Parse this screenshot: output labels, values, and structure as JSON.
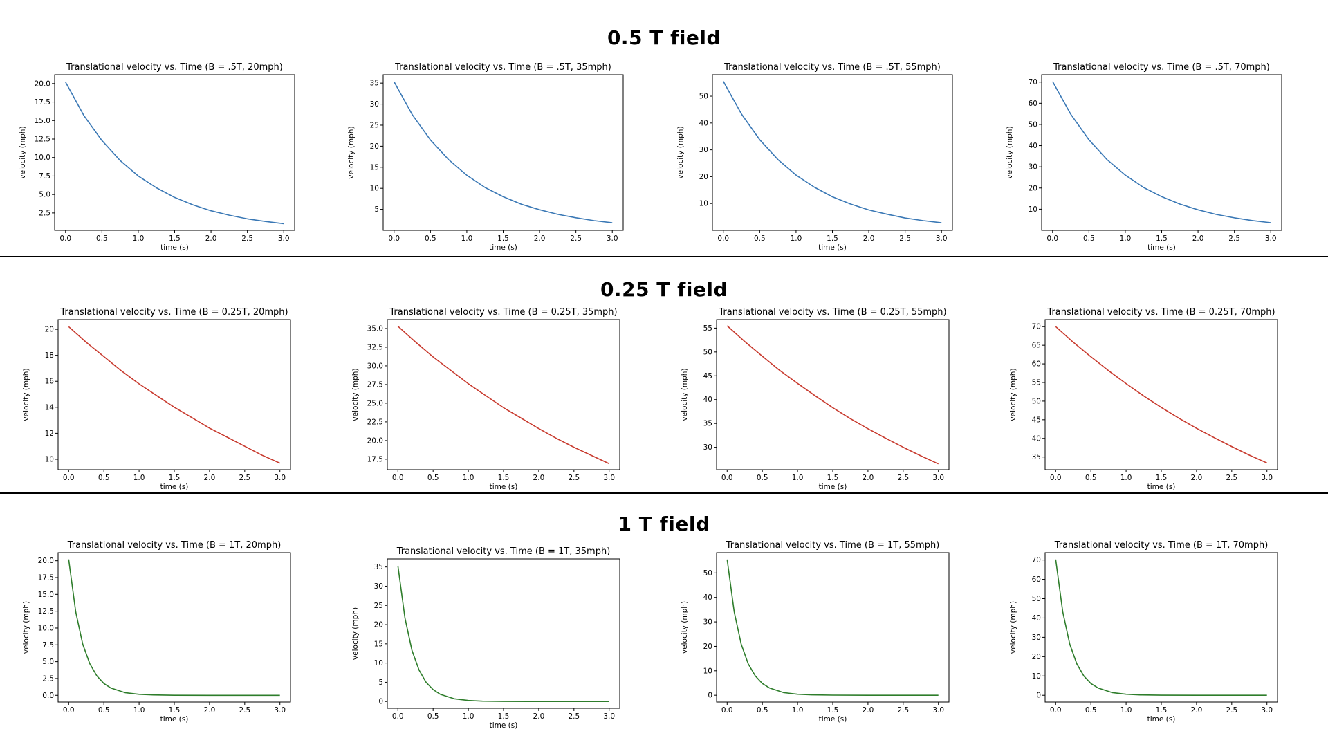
{
  "sections": [
    {
      "title": "0.5 T field",
      "color": "#3a78b5"
    },
    {
      "title": "0.25 T field",
      "color": "#c83a2e"
    },
    {
      "title": "1 T field",
      "color": "#2e7d2b"
    }
  ],
  "chart_data": [
    {
      "type": "line",
      "title": "Translational velocity vs. Time (B = .5T, 20mph)",
      "xlabel": "time (s)",
      "ylabel": "velocity (mph)",
      "series": [
        {
          "x": [
            0,
            0.25,
            0.5,
            0.75,
            1,
            1.25,
            1.5,
            1.75,
            2,
            2.25,
            2.5,
            2.75,
            3
          ],
          "y": [
            20.2,
            15.7,
            12.3,
            9.6,
            7.5,
            5.9,
            4.6,
            3.6,
            2.8,
            2.2,
            1.7,
            1.35,
            1.05
          ]
        }
      ],
      "xlim": [
        -0.15,
        3.15
      ],
      "ylim": [
        0.15,
        21.2
      ],
      "xticks": [
        0,
        0.5,
        1,
        1.5,
        2,
        2.5,
        3
      ],
      "xtick_labels": [
        "0.0",
        "0.5",
        "1.0",
        "1.5",
        "2.0",
        "2.5",
        "3.0"
      ],
      "yticks": [
        2.5,
        5,
        7.5,
        10,
        12.5,
        15,
        17.5,
        20
      ],
      "ytick_labels": [
        "2.5",
        "5.0",
        "7.5",
        "10.0",
        "12.5",
        "15.0",
        "17.5",
        "20.0"
      ],
      "grid": false
    },
    {
      "type": "line",
      "title": "Translational velocity vs. Time (B = .5T, 35mph)",
      "xlabel": "time (s)",
      "ylabel": "velocity (mph)",
      "series": [
        {
          "x": [
            0,
            0.25,
            0.5,
            0.75,
            1,
            1.25,
            1.5,
            1.75,
            2,
            2.25,
            2.5,
            2.75,
            3
          ],
          "y": [
            35.3,
            27.5,
            21.5,
            16.8,
            13.1,
            10.2,
            8.0,
            6.2,
            4.9,
            3.8,
            3.0,
            2.3,
            1.8
          ]
        }
      ],
      "xlim": [
        -0.15,
        3.15
      ],
      "ylim": [
        0.0,
        37.0
      ],
      "xticks": [
        0,
        0.5,
        1,
        1.5,
        2,
        2.5,
        3
      ],
      "xtick_labels": [
        "0.0",
        "0.5",
        "1.0",
        "1.5",
        "2.0",
        "2.5",
        "3.0"
      ],
      "yticks": [
        5,
        10,
        15,
        20,
        25,
        30,
        35
      ],
      "ytick_labels": [
        "5",
        "10",
        "15",
        "20",
        "25",
        "30",
        "35"
      ],
      "grid": false
    },
    {
      "type": "line",
      "title": "Translational velocity vs. Time (B = .5T, 55mph)",
      "xlabel": "time (s)",
      "ylabel": "velocity (mph)",
      "series": [
        {
          "x": [
            0,
            0.25,
            0.5,
            0.75,
            1,
            1.25,
            1.5,
            1.75,
            2,
            2.25,
            2.5,
            2.75,
            3
          ],
          "y": [
            55.5,
            43.3,
            33.8,
            26.4,
            20.6,
            16.1,
            12.5,
            9.8,
            7.6,
            6.0,
            4.6,
            3.6,
            2.8
          ]
        }
      ],
      "xlim": [
        -0.15,
        3.15
      ],
      "ylim": [
        0.0,
        58.0
      ],
      "xticks": [
        0,
        0.5,
        1,
        1.5,
        2,
        2.5,
        3
      ],
      "xtick_labels": [
        "0.0",
        "0.5",
        "1.0",
        "1.5",
        "2.0",
        "2.5",
        "3.0"
      ],
      "yticks": [
        10,
        20,
        30,
        40,
        50
      ],
      "ytick_labels": [
        "10",
        "20",
        "30",
        "40",
        "50"
      ],
      "grid": false
    },
    {
      "type": "line",
      "title": "Translational velocity vs. Time (B = .5T, 70mph)",
      "xlabel": "time (s)",
      "ylabel": "velocity (mph)",
      "series": [
        {
          "x": [
            0,
            0.25,
            0.5,
            0.75,
            1,
            1.25,
            1.5,
            1.75,
            2,
            2.25,
            2.5,
            2.75,
            3
          ],
          "y": [
            70.3,
            54.8,
            42.8,
            33.4,
            26.1,
            20.3,
            15.9,
            12.4,
            9.7,
            7.5,
            5.9,
            4.6,
            3.6
          ]
        }
      ],
      "xlim": [
        -0.15,
        3.15
      ],
      "ylim": [
        0.0,
        73.5
      ],
      "xticks": [
        0,
        0.5,
        1,
        1.5,
        2,
        2.5,
        3
      ],
      "xtick_labels": [
        "0.0",
        "0.5",
        "1.0",
        "1.5",
        "2.0",
        "2.5",
        "3.0"
      ],
      "yticks": [
        10,
        20,
        30,
        40,
        50,
        60,
        70
      ],
      "ytick_labels": [
        "10",
        "20",
        "30",
        "40",
        "50",
        "60",
        "70"
      ],
      "grid": false
    },
    {
      "type": "line",
      "title": "Translational velocity vs. Time (B = 0.25T, 20mph)",
      "xlabel": "time (s)",
      "ylabel": "velocity (mph)",
      "series": [
        {
          "x": [
            0,
            0.25,
            0.5,
            0.75,
            1,
            1.25,
            1.5,
            1.75,
            2,
            2.25,
            2.5,
            2.75,
            3
          ],
          "y": [
            20.2,
            19.0,
            17.9,
            16.8,
            15.8,
            14.9,
            14.0,
            13.2,
            12.4,
            11.7,
            11.0,
            10.3,
            9.7
          ]
        }
      ],
      "xlim": [
        -0.15,
        3.15
      ],
      "ylim": [
        9.2,
        20.75
      ],
      "xticks": [
        0,
        0.5,
        1,
        1.5,
        2,
        2.5,
        3
      ],
      "xtick_labels": [
        "0.0",
        "0.5",
        "1.0",
        "1.5",
        "2.0",
        "2.5",
        "3.0"
      ],
      "yticks": [
        10,
        12,
        14,
        16,
        18,
        20
      ],
      "ytick_labels": [
        "10",
        "12",
        "14",
        "16",
        "18",
        "20"
      ],
      "grid": false
    },
    {
      "type": "line",
      "title": "Translational velocity vs. Time (B = 0.25T, 35mph)",
      "xlabel": "time (s)",
      "ylabel": "velocity (mph)",
      "series": [
        {
          "x": [
            0,
            0.25,
            0.5,
            0.75,
            1,
            1.25,
            1.5,
            1.75,
            2,
            2.25,
            2.5,
            2.75,
            3
          ],
          "y": [
            35.3,
            33.2,
            31.2,
            29.4,
            27.6,
            26.0,
            24.4,
            23.0,
            21.6,
            20.3,
            19.1,
            18.0,
            16.9
          ]
        }
      ],
      "xlim": [
        -0.15,
        3.15
      ],
      "ylim": [
        16.1,
        36.2
      ],
      "xticks": [
        0,
        0.5,
        1,
        1.5,
        2,
        2.5,
        3
      ],
      "xtick_labels": [
        "0.0",
        "0.5",
        "1.0",
        "1.5",
        "2.0",
        "2.5",
        "3.0"
      ],
      "yticks": [
        17.5,
        20,
        22.5,
        25,
        27.5,
        30,
        32.5,
        35
      ],
      "ytick_labels": [
        "17.5",
        "20.0",
        "22.5",
        "25.0",
        "27.5",
        "30.0",
        "32.5",
        "35.0"
      ],
      "grid": false
    },
    {
      "type": "line",
      "title": "Translational velocity vs. Time (B = 0.25T, 55mph)",
      "xlabel": "time (s)",
      "ylabel": "velocity (mph)",
      "series": [
        {
          "x": [
            0,
            0.25,
            0.5,
            0.75,
            1,
            1.25,
            1.5,
            1.75,
            2,
            2.25,
            2.5,
            2.75,
            3
          ],
          "y": [
            55.5,
            52.2,
            49.1,
            46.1,
            43.4,
            40.8,
            38.3,
            36.0,
            33.9,
            31.9,
            30.0,
            28.2,
            26.5
          ]
        }
      ],
      "xlim": [
        -0.15,
        3.15
      ],
      "ylim": [
        25.3,
        56.8
      ],
      "xticks": [
        0,
        0.5,
        1,
        1.5,
        2,
        2.5,
        3
      ],
      "xtick_labels": [
        "0.0",
        "0.5",
        "1.0",
        "1.5",
        "2.0",
        "2.5",
        "3.0"
      ],
      "yticks": [
        30,
        35,
        40,
        45,
        50,
        55
      ],
      "ytick_labels": [
        "30",
        "35",
        "40",
        "45",
        "50",
        "55"
      ],
      "grid": false
    },
    {
      "type": "line",
      "title": "Translational velocity vs. Time (B = 0.25T, 70mph)",
      "xlabel": "time (s)",
      "ylabel": "velocity (mph)",
      "series": [
        {
          "x": [
            0,
            0.25,
            0.5,
            0.75,
            1,
            1.25,
            1.5,
            1.75,
            2,
            2.25,
            2.5,
            2.75,
            3
          ],
          "y": [
            70.0,
            65.8,
            61.9,
            58.2,
            54.7,
            51.4,
            48.3,
            45.4,
            42.7,
            40.2,
            37.8,
            35.5,
            33.4
          ]
        }
      ],
      "xlim": [
        -0.15,
        3.15
      ],
      "ylim": [
        31.6,
        71.9
      ],
      "xticks": [
        0,
        0.5,
        1,
        1.5,
        2,
        2.5,
        3
      ],
      "xtick_labels": [
        "0.0",
        "0.5",
        "1.0",
        "1.5",
        "2.0",
        "2.5",
        "3.0"
      ],
      "yticks": [
        35,
        40,
        45,
        50,
        55,
        60,
        65,
        70
      ],
      "ytick_labels": [
        "35",
        "40",
        "45",
        "50",
        "55",
        "60",
        "65",
        "70"
      ],
      "grid": false
    },
    {
      "type": "line",
      "title": "Translational velocity vs. Time (B = 1T, 20mph)",
      "xlabel": "time (s)",
      "ylabel": "velocity (mph)",
      "series": [
        {
          "x": [
            0,
            0.1,
            0.2,
            0.3,
            0.4,
            0.5,
            0.6,
            0.8,
            1,
            1.2,
            1.5,
            2,
            2.5,
            3
          ],
          "y": [
            20.2,
            12.4,
            7.6,
            4.7,
            2.9,
            1.75,
            1.08,
            0.4,
            0.15,
            0.06,
            0.01,
            0,
            0,
            0
          ]
        }
      ],
      "xlim": [
        -0.15,
        3.15
      ],
      "ylim": [
        -1.0,
        21.2
      ],
      "xticks": [
        0,
        0.5,
        1,
        1.5,
        2,
        2.5,
        3
      ],
      "xtick_labels": [
        "0.0",
        "0.5",
        "1.0",
        "1.5",
        "2.0",
        "2.5",
        "3.0"
      ],
      "yticks": [
        0,
        2.5,
        5,
        7.5,
        10,
        12.5,
        15,
        17.5,
        20
      ],
      "ytick_labels": [
        "0.0",
        "2.5",
        "5.0",
        "7.5",
        "10.0",
        "12.5",
        "15.0",
        "17.5",
        "20.0"
      ],
      "grid": false
    },
    {
      "type": "line",
      "title": "Translational velocity vs. Time (B = 1T, 35mph)",
      "xlabel": "time (s)",
      "ylabel": "velocity (mph)",
      "series": [
        {
          "x": [
            0,
            0.1,
            0.2,
            0.3,
            0.4,
            0.5,
            0.6,
            0.8,
            1,
            1.2,
            1.5,
            2,
            2.5,
            3
          ],
          "y": [
            35.3,
            21.7,
            13.3,
            8.2,
            5.0,
            3.1,
            1.9,
            0.7,
            0.27,
            0.1,
            0.02,
            0,
            0,
            0
          ]
        }
      ],
      "xlim": [
        -0.15,
        3.15
      ],
      "ylim": [
        -1.76,
        37.1
      ],
      "xticks": [
        0,
        0.5,
        1,
        1.5,
        2,
        2.5,
        3
      ],
      "xtick_labels": [
        "0.0",
        "0.5",
        "1.0",
        "1.5",
        "2.0",
        "2.5",
        "3.0"
      ],
      "yticks": [
        0,
        5,
        10,
        15,
        20,
        25,
        30,
        35
      ],
      "ytick_labels": [
        "0",
        "5",
        "10",
        "15",
        "20",
        "25",
        "30",
        "35"
      ],
      "grid": false
    },
    {
      "type": "line",
      "title": "Translational velocity vs. Time (B = 1T, 55mph)",
      "xlabel": "time (s)",
      "ylabel": "velocity (mph)",
      "series": [
        {
          "x": [
            0,
            0.1,
            0.2,
            0.3,
            0.4,
            0.5,
            0.6,
            0.8,
            1,
            1.2,
            1.5,
            2,
            2.5,
            3
          ],
          "y": [
            55.5,
            34.1,
            20.9,
            12.8,
            7.9,
            4.8,
            3.0,
            1.1,
            0.42,
            0.16,
            0.04,
            0,
            0,
            0
          ]
        }
      ],
      "xlim": [
        -0.15,
        3.15
      ],
      "ylim": [
        -2.78,
        58.3
      ],
      "xticks": [
        0,
        0.5,
        1,
        1.5,
        2,
        2.5,
        3
      ],
      "xtick_labels": [
        "0.0",
        "0.5",
        "1.0",
        "1.5",
        "2.0",
        "2.5",
        "3.0"
      ],
      "yticks": [
        0,
        10,
        20,
        30,
        40,
        50
      ],
      "ytick_labels": [
        "0",
        "10",
        "20",
        "30",
        "40",
        "50"
      ],
      "grid": false
    },
    {
      "type": "line",
      "title": "Translational velocity vs. Time (B = 1T, 70mph)",
      "xlabel": "time (s)",
      "ylabel": "velocity (mph)",
      "series": [
        {
          "x": [
            0,
            0.1,
            0.2,
            0.3,
            0.4,
            0.5,
            0.6,
            0.8,
            1,
            1.2,
            1.5,
            2,
            2.5,
            3
          ],
          "y": [
            70.3,
            43.2,
            26.5,
            16.3,
            10.0,
            6.1,
            3.8,
            1.4,
            0.53,
            0.2,
            0.05,
            0,
            0,
            0
          ]
        }
      ],
      "xlim": [
        -0.15,
        3.15
      ],
      "ylim": [
        -3.5,
        73.8
      ],
      "xticks": [
        0,
        0.5,
        1,
        1.5,
        2,
        2.5,
        3
      ],
      "xtick_labels": [
        "0.0",
        "0.5",
        "1.0",
        "1.5",
        "2.0",
        "2.5",
        "3.0"
      ],
      "yticks": [
        0,
        10,
        20,
        30,
        40,
        50,
        60,
        70
      ],
      "ytick_labels": [
        "0",
        "10",
        "20",
        "30",
        "40",
        "50",
        "60",
        "70"
      ],
      "grid": false
    }
  ]
}
